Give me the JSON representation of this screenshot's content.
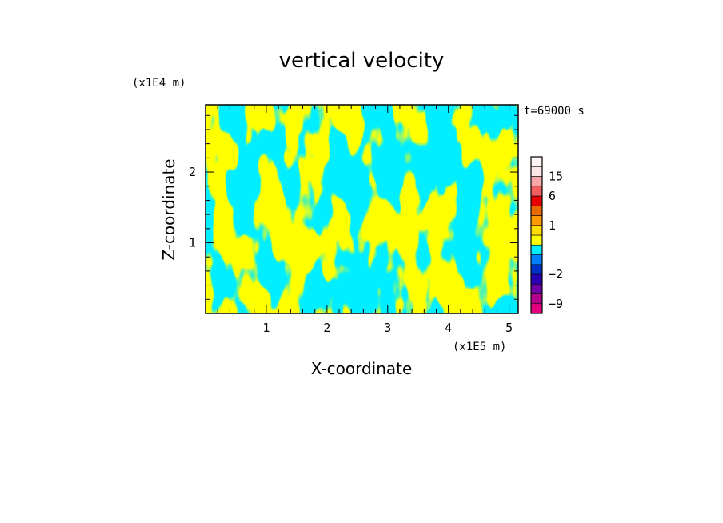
{
  "chart_data": {
    "type": "heatmap",
    "title": "vertical velocity",
    "xlabel": "X-coordinate",
    "ylabel": "Z-coordinate",
    "x_unit_label": "(x1E5 m)",
    "y_unit_label": "(x1E4 m)",
    "time_label": "t=69000 s",
    "xlim": [
      0,
      5.15
    ],
    "ylim": [
      0,
      2.95
    ],
    "x_ticks": [
      1,
      2,
      3,
      4,
      5
    ],
    "x_tick_labels": [
      "1",
      "2",
      "3",
      "4",
      "5"
    ],
    "y_ticks": [
      1,
      2
    ],
    "y_tick_labels": [
      "1",
      "2"
    ],
    "dominant_colors": {
      "positive": "#ffff00",
      "negative": "#00eeff"
    },
    "colorbar": {
      "levels": [
        -12,
        -9,
        -6,
        -4,
        -2,
        -1,
        -0.5,
        0,
        0.5,
        1,
        2,
        4,
        6,
        10,
        15,
        20,
        25
      ],
      "colors": [
        "#e6007e",
        "#b4008c",
        "#7000a8",
        "#2a00b4",
        "#0032c8",
        "#0080ff",
        "#00eeff",
        "#ffff00",
        "#ffdd00",
        "#ff9900",
        "#e86a00",
        "#e80000",
        "#f06060",
        "#f8a8a8",
        "#fde6e6",
        "#fff5f5"
      ],
      "tick_values": [
        15,
        6,
        1,
        -2,
        -9
      ],
      "tick_labels": [
        "15",
        "6",
        "1",
        "−2",
        "−9"
      ]
    }
  }
}
